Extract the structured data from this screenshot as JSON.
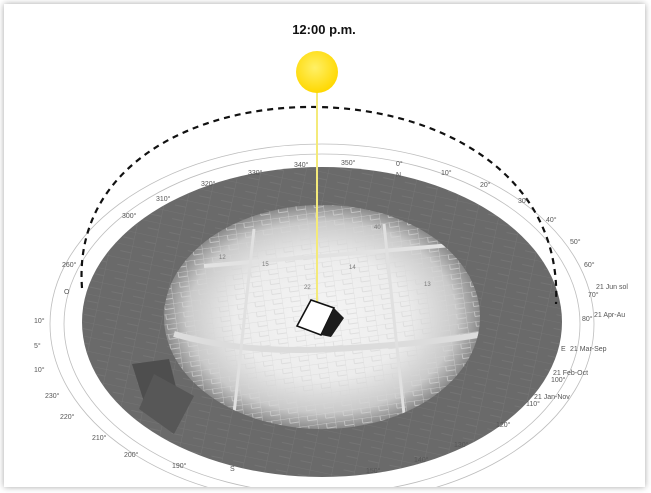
{
  "time_label": "12:00 p.m.",
  "colors": {
    "sun": "#ffdf00",
    "sun_ray": "#f4ea7a",
    "arc": "#111111",
    "outer_ring": "#6d6d6d",
    "map_light": "#f3f3f3"
  },
  "icons": [
    "sun-icon",
    "building-icon"
  ],
  "azimuth_labels": {
    "a0": "0°",
    "n": "N",
    "a10": "10°",
    "a20": "20°",
    "a30": "30°",
    "a40": "40°",
    "a50": "50°",
    "a60": "60°",
    "a70": "70°",
    "a80": "80°",
    "e": "E",
    "a100": "100°",
    "a110": "110°",
    "a120": "120°",
    "a130": "130°",
    "a140": "140°",
    "a150": "150°",
    "a190": "190°",
    "a200": "200°",
    "a210": "210°",
    "a220": "220°",
    "a230": "230°",
    "a260": "260°",
    "a300": "300°",
    "a310": "310°",
    "a320": "320°",
    "a330": "330°",
    "a340": "340°",
    "a350": "350°",
    "s": "S",
    "o": "O",
    "left10": "10°",
    "left5": "5°",
    "left10b": "10°"
  },
  "date_labels": {
    "jun": "21 Jun sol",
    "apr_aug": "21 Apr-Au",
    "mar_sep": "21 Mar-Sep",
    "feb_oct": "21 Feb-Oct",
    "jan_nov": "21 Jan-Nov"
  }
}
